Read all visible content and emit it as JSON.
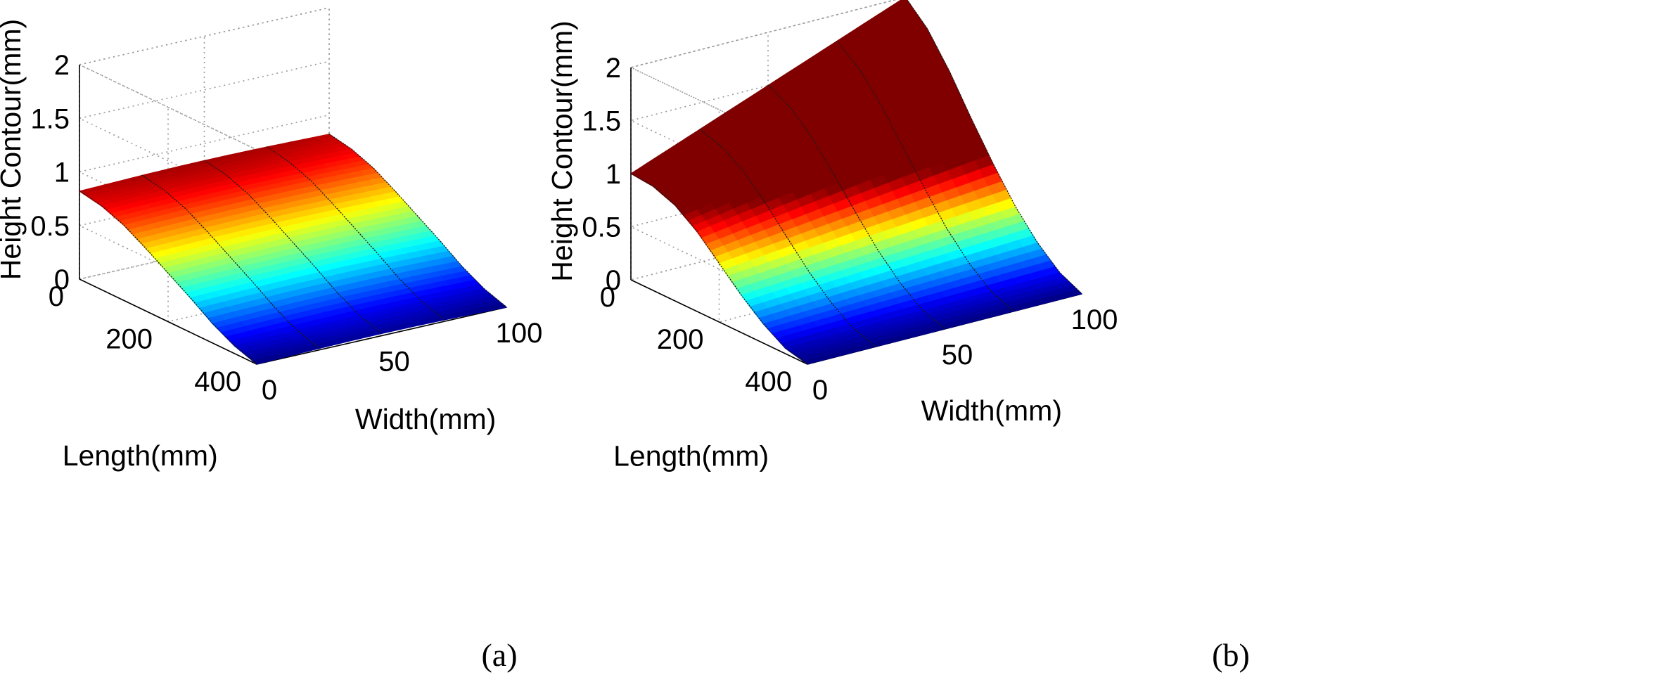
{
  "figure": {
    "panel_labels": [
      "(a)",
      "(b)"
    ]
  },
  "chart_data": [
    {
      "type": "surface",
      "panel": "(a)",
      "title": "",
      "xlabel": "Width(mm)",
      "ylabel": "Length(mm)",
      "zlabel": "Height Contour(mm)",
      "xlim": [
        0,
        100
      ],
      "ylim": [
        0,
        400
      ],
      "zlim": [
        0,
        2
      ],
      "xticks": [
        0,
        50,
        100
      ],
      "yticks": [
        0,
        200,
        400
      ],
      "zticks": [
        0,
        0.5,
        1,
        1.5,
        2
      ],
      "xtick_labels": [
        "0",
        "50",
        "100"
      ],
      "ytick_labels": [
        "0",
        "200",
        "400"
      ],
      "ztick_labels": [
        "0",
        "0.5",
        "1",
        "1.5",
        "2"
      ],
      "colormap": "jet",
      "description_of_surface": "Height decreases along length from ~0.8 mm at length 0 to ~0 mm at length 400, nearly constant across width",
      "length_samples": [
        0,
        50,
        100,
        150,
        200,
        250,
        300,
        350,
        400
      ],
      "height_profile": [
        0.82,
        0.78,
        0.7,
        0.58,
        0.45,
        0.32,
        0.18,
        0.07,
        0.0
      ],
      "width_variation": 0.02,
      "measured_line_widths": [
        0,
        25,
        50,
        75,
        100
      ]
    },
    {
      "type": "surface",
      "panel": "(b)",
      "title": "",
      "xlabel": "Width(mm)",
      "ylabel": "Length(mm)",
      "zlabel": "Height Contour(mm)",
      "xlim": [
        0,
        100
      ],
      "ylim": [
        0,
        400
      ],
      "zlim": [
        0,
        2
      ],
      "xticks": [
        0,
        50,
        100
      ],
      "yticks": [
        0,
        200,
        400
      ],
      "zticks": [
        0,
        0.5,
        1,
        1.5,
        2
      ],
      "xtick_labels": [
        "0",
        "50",
        "100"
      ],
      "ytick_labels": [
        "0",
        "200",
        "400"
      ],
      "ztick_labels": [
        "0",
        "0.5",
        "1",
        "1.5",
        "2"
      ],
      "colormap": "jet",
      "description_of_surface": "Height rises from ~1.0 mm at (width 0, length 0) to ~2.0 mm at (width 100, length 0) and falls to ~0 mm at length 400",
      "length_samples": [
        0,
        50,
        100,
        150,
        200,
        250,
        300,
        350,
        400
      ],
      "height_profile_width0": [
        1.0,
        0.98,
        0.9,
        0.75,
        0.55,
        0.35,
        0.18,
        0.05,
        0.0
      ],
      "height_profile_width100": [
        2.0,
        1.8,
        1.5,
        1.15,
        0.82,
        0.52,
        0.28,
        0.1,
        0.0
      ],
      "measured_line_widths": [
        0,
        25,
        50,
        75,
        100
      ]
    }
  ]
}
